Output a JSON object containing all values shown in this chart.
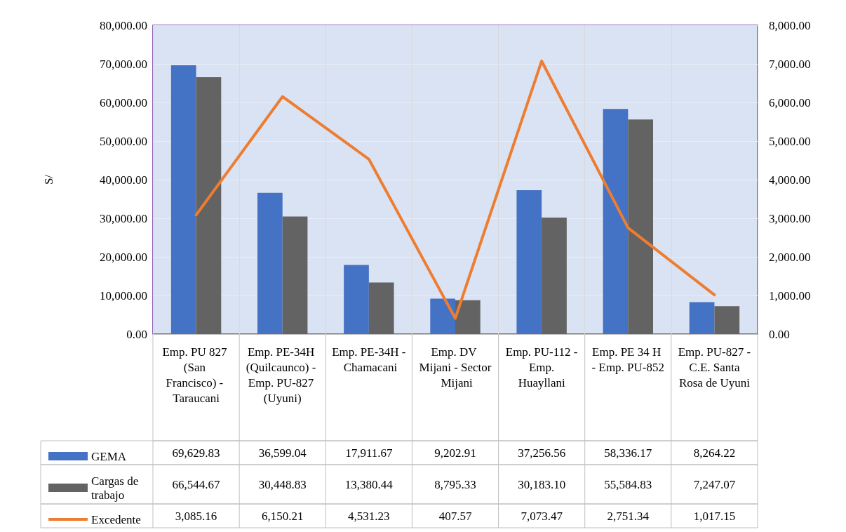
{
  "chart_data": {
    "type": "bar",
    "ylabel": "S/",
    "categories": [
      "Emp. PU 827 (San Francisco) - Taraucani",
      "Emp. PE-34H (Quilcaunco) - Emp. PU-827 (Uyuni)",
      "Emp. PE-34H - Chamacani",
      "Emp. DV Mijani - Sector Mijani",
      "Emp. PU-112 - Emp. Huayllani",
      "Emp. PE 34 H - Emp. PU-852",
      "Emp. PU-827 - C.E. Santa Rosa de Uyuni"
    ],
    "series": [
      {
        "name": "GEMA",
        "color": "#4472c4",
        "values": [
          69629.83,
          36599.04,
          17911.67,
          9202.91,
          37256.56,
          58336.17,
          8264.22
        ],
        "value_labels": [
          "69,629.83",
          "36,599.04",
          "17,911.67",
          "9,202.91",
          "37,256.56",
          "58,336.17",
          "8,264.22"
        ]
      },
      {
        "name": "Cargas de trabajo",
        "color": "#636363",
        "values": [
          66544.67,
          30448.83,
          13380.44,
          8795.33,
          30183.1,
          55584.83,
          7247.07
        ],
        "value_labels": [
          "66,544.67",
          "30,448.83",
          "13,380.44",
          "8,795.33",
          "30,183.10",
          "55,584.83",
          "7,247.07"
        ]
      },
      {
        "name": "Excedente",
        "type": "line",
        "axis": "y2",
        "color": "#ed7d31",
        "values": [
          3085.16,
          6150.21,
          4531.23,
          407.57,
          7073.47,
          2751.34,
          1017.15
        ],
        "value_labels": [
          "3,085.16",
          "6,150.21",
          "4,531.23",
          "407.57",
          "7,073.47",
          "2,751.34",
          "1,017.15"
        ]
      }
    ],
    "ylim": [
      0,
      80000
    ],
    "yticks": [
      {
        "value": 0,
        "label": "0.00"
      },
      {
        "value": 10000,
        "label": "10,000.00"
      },
      {
        "value": 20000,
        "label": "20,000.00"
      },
      {
        "value": 30000,
        "label": "30,000.00"
      },
      {
        "value": 40000,
        "label": "40,000.00"
      },
      {
        "value": 50000,
        "label": "50,000.00"
      },
      {
        "value": 60000,
        "label": "60,000.00"
      },
      {
        "value": 70000,
        "label": "70,000.00"
      },
      {
        "value": 80000,
        "label": "80,000.00"
      }
    ],
    "y2lim": [
      0,
      8000
    ],
    "y2ticks": [
      {
        "value": 0,
        "label": "0.00"
      },
      {
        "value": 1000,
        "label": "1,000.00"
      },
      {
        "value": 2000,
        "label": "2,000.00"
      },
      {
        "value": 3000,
        "label": "3,000.00"
      },
      {
        "value": 4000,
        "label": "4,000.00"
      },
      {
        "value": 5000,
        "label": "5,000.00"
      },
      {
        "value": 6000,
        "label": "6,000.00"
      },
      {
        "value": 7000,
        "label": "7,000.00"
      },
      {
        "value": 8000,
        "label": "8,000.00"
      }
    ],
    "grid": true,
    "legend": "bottom",
    "marker": "none",
    "line_style": "solid"
  }
}
